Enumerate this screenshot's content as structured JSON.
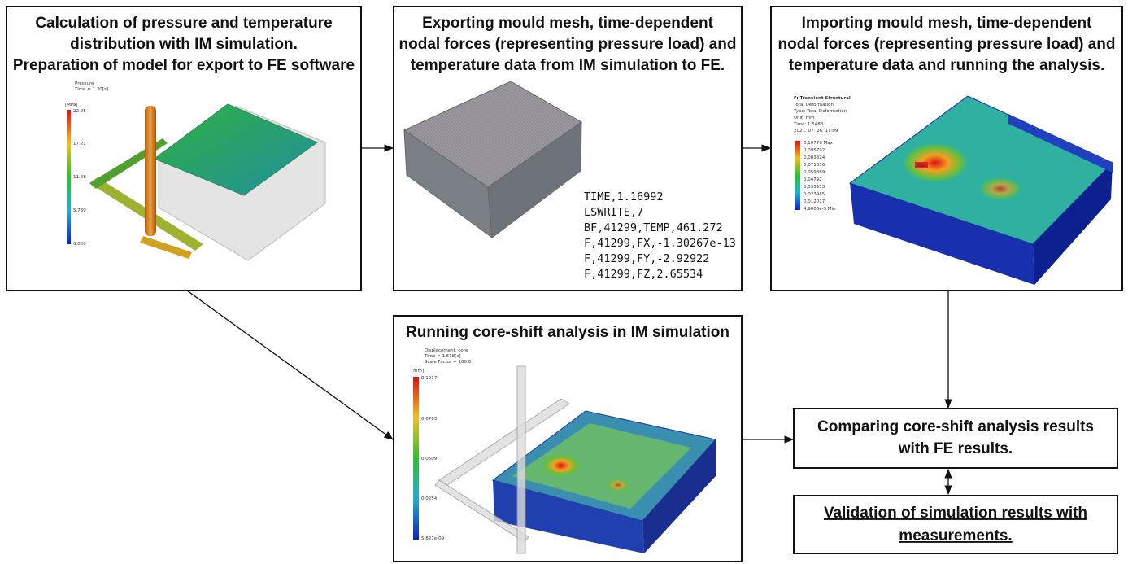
{
  "boxes": [
    {
      "title": [
        "Calculation of pressure and temperature",
        "distribution with IM simulation.",
        "Preparation of model for export to FE software"
      ],
      "image": {
        "caption": [
          "Pressure",
          "Time = 1.30[s]"
        ],
        "unit": "[MPa]",
        "legend": [
          "22.95",
          "17.21",
          "11.48",
          "5.739",
          "0.000"
        ]
      }
    },
    {
      "title": [
        "Exporting mould mesh, time-dependent",
        "nodal forces (representing pressure load) and",
        "temperature data from IM simulation to FE."
      ],
      "code": [
        "TIME,1.16992",
        "LSWRITE,7",
        "BF,41299,TEMP,461.272",
        "F,41299,FX,-1.30267e-13",
        "F,41299,FY,-2.92922",
        "F,41299,FZ,2.65534"
      ]
    },
    {
      "title": [
        "Importing mould mesh, time-dependent",
        "nodal forces (representing pressure load) and",
        "temperature data and running the analysis."
      ],
      "image": {
        "caption": [
          "F: Transient Structural",
          "Total Deformation",
          "Type: Total Deformation",
          "Unit: mm",
          "Time: 1,5488",
          "2021. 07. 26. 11:09"
        ],
        "legend": [
          "0,10776 Max",
          "0,095792",
          "0,083824",
          "0,071856",
          "0,059889",
          "0,04792",
          "0,035953",
          "0,023985",
          "0,012017",
          "4,9006e-5 Min"
        ],
        "marker": "Max"
      }
    },
    {
      "title": [
        "Running core-shift analysis in IM simulation"
      ],
      "image": {
        "caption": [
          "Displacement, core",
          "Time = 1.518[s]",
          "Scale Factor = 100.0"
        ],
        "unit": "[mm]",
        "legend": [
          "0.1017",
          "0.0763",
          "0.0509",
          "0.0254",
          "5.827e-09"
        ]
      }
    },
    {
      "title": [
        "Comparing core-shift analysis results",
        "with FE results."
      ]
    },
    {
      "title": [
        "Validation of simulation results with",
        "measurements."
      ]
    }
  ]
}
